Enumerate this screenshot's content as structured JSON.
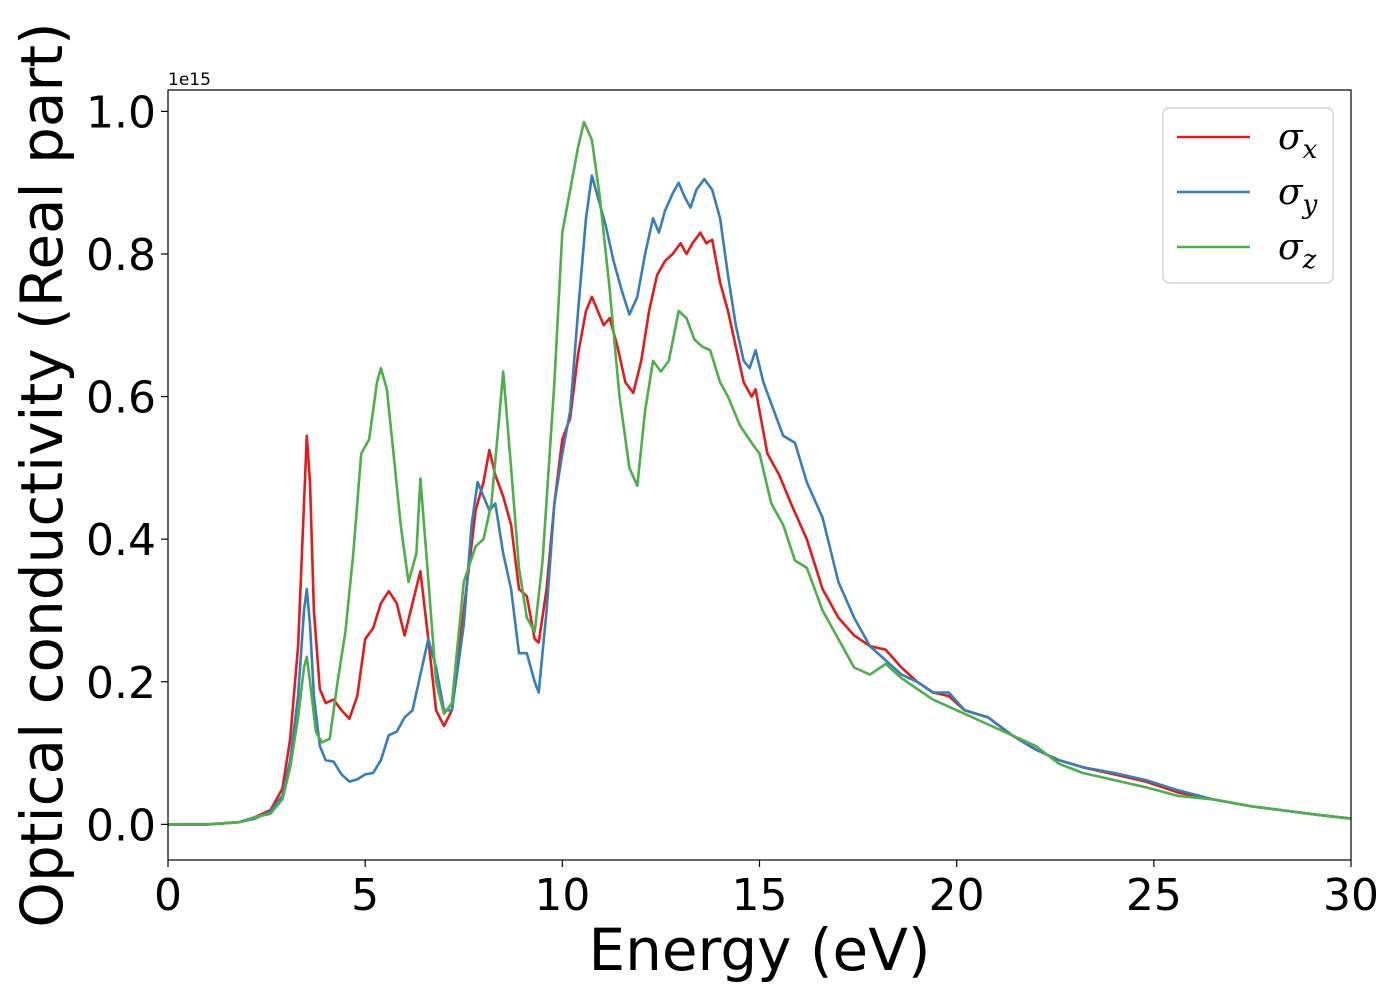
{
  "chart_data": {
    "type": "line",
    "title": "",
    "xlabel": "Energy (eV)",
    "ylabel": "Optical conductivity (Real part)",
    "y_offset_label": "1e15",
    "xlim": [
      0,
      30
    ],
    "ylim": [
      -0.05,
      1.03
    ],
    "x_ticks": [
      0,
      5,
      10,
      15,
      20,
      25,
      30
    ],
    "y_ticks": [
      0.0,
      0.2,
      0.4,
      0.6,
      0.8,
      1.0
    ],
    "x_tick_labels": [
      "0",
      "5",
      "10",
      "15",
      "20",
      "25",
      "30"
    ],
    "y_tick_labels": [
      "0.0",
      "0.2",
      "0.4",
      "0.6",
      "0.8",
      "1.0"
    ],
    "grid": false,
    "legend_position": "top-right",
    "series": [
      {
        "name": "σx",
        "legend_symbol": "σ",
        "legend_subscript": "x",
        "color": "#e41a1c",
        "points": [
          [
            0,
            0
          ],
          [
            1,
            0
          ],
          [
            1.8,
            0.003
          ],
          [
            2.2,
            0.01
          ],
          [
            2.6,
            0.02
          ],
          [
            2.9,
            0.05
          ],
          [
            3.1,
            0.12
          ],
          [
            3.3,
            0.25
          ],
          [
            3.45,
            0.45
          ],
          [
            3.52,
            0.545
          ],
          [
            3.6,
            0.48
          ],
          [
            3.7,
            0.3
          ],
          [
            3.85,
            0.19
          ],
          [
            4.0,
            0.17
          ],
          [
            4.2,
            0.175
          ],
          [
            4.4,
            0.16
          ],
          [
            4.6,
            0.148
          ],
          [
            4.8,
            0.18
          ],
          [
            5.0,
            0.26
          ],
          [
            5.2,
            0.275
          ],
          [
            5.4,
            0.31
          ],
          [
            5.6,
            0.327
          ],
          [
            5.8,
            0.31
          ],
          [
            6.0,
            0.265
          ],
          [
            6.2,
            0.31
          ],
          [
            6.4,
            0.355
          ],
          [
            6.6,
            0.26
          ],
          [
            6.8,
            0.16
          ],
          [
            7.0,
            0.138
          ],
          [
            7.2,
            0.16
          ],
          [
            7.5,
            0.3
          ],
          [
            7.8,
            0.44
          ],
          [
            8.0,
            0.48
          ],
          [
            8.15,
            0.525
          ],
          [
            8.3,
            0.49
          ],
          [
            8.5,
            0.46
          ],
          [
            8.7,
            0.42
          ],
          [
            8.9,
            0.33
          ],
          [
            9.1,
            0.32
          ],
          [
            9.3,
            0.26
          ],
          [
            9.4,
            0.255
          ],
          [
            9.6,
            0.33
          ],
          [
            9.8,
            0.45
          ],
          [
            10.0,
            0.54
          ],
          [
            10.2,
            0.57
          ],
          [
            10.4,
            0.66
          ],
          [
            10.6,
            0.72
          ],
          [
            10.75,
            0.74
          ],
          [
            10.9,
            0.72
          ],
          [
            11.05,
            0.7
          ],
          [
            11.2,
            0.71
          ],
          [
            11.4,
            0.67
          ],
          [
            11.6,
            0.62
          ],
          [
            11.8,
            0.605
          ],
          [
            12.0,
            0.65
          ],
          [
            12.2,
            0.72
          ],
          [
            12.4,
            0.77
          ],
          [
            12.6,
            0.79
          ],
          [
            12.8,
            0.8
          ],
          [
            13.0,
            0.815
          ],
          [
            13.15,
            0.8
          ],
          [
            13.3,
            0.815
          ],
          [
            13.5,
            0.83
          ],
          [
            13.65,
            0.815
          ],
          [
            13.8,
            0.82
          ],
          [
            14.0,
            0.76
          ],
          [
            14.2,
            0.72
          ],
          [
            14.4,
            0.67
          ],
          [
            14.6,
            0.62
          ],
          [
            14.8,
            0.6
          ],
          [
            14.9,
            0.61
          ],
          [
            15.0,
            0.58
          ],
          [
            15.2,
            0.52
          ],
          [
            15.5,
            0.49
          ],
          [
            15.8,
            0.45
          ],
          [
            16.2,
            0.4
          ],
          [
            16.6,
            0.33
          ],
          [
            17.0,
            0.29
          ],
          [
            17.4,
            0.265
          ],
          [
            17.8,
            0.25
          ],
          [
            18.2,
            0.245
          ],
          [
            18.6,
            0.22
          ],
          [
            19.0,
            0.2
          ],
          [
            19.4,
            0.185
          ],
          [
            19.8,
            0.18
          ],
          [
            20.2,
            0.16
          ],
          [
            20.8,
            0.15
          ],
          [
            21.4,
            0.125
          ],
          [
            22.0,
            0.105
          ],
          [
            22.6,
            0.09
          ],
          [
            23.2,
            0.08
          ],
          [
            24.0,
            0.07
          ],
          [
            24.8,
            0.06
          ],
          [
            25.6,
            0.045
          ],
          [
            26.5,
            0.035
          ],
          [
            27.5,
            0.025
          ],
          [
            28.5,
            0.018
          ],
          [
            29.2,
            0.013
          ],
          [
            30,
            0.008
          ]
        ]
      },
      {
        "name": "σy",
        "legend_symbol": "σ",
        "legend_subscript": "y",
        "color": "#377eb8",
        "points": [
          [
            0,
            0
          ],
          [
            1,
            0
          ],
          [
            1.8,
            0.003
          ],
          [
            2.2,
            0.008
          ],
          [
            2.6,
            0.018
          ],
          [
            2.9,
            0.04
          ],
          [
            3.1,
            0.09
          ],
          [
            3.3,
            0.18
          ],
          [
            3.45,
            0.3
          ],
          [
            3.52,
            0.33
          ],
          [
            3.6,
            0.28
          ],
          [
            3.7,
            0.18
          ],
          [
            3.85,
            0.11
          ],
          [
            4.0,
            0.09
          ],
          [
            4.2,
            0.088
          ],
          [
            4.4,
            0.07
          ],
          [
            4.6,
            0.06
          ],
          [
            4.8,
            0.063
          ],
          [
            5.0,
            0.07
          ],
          [
            5.2,
            0.072
          ],
          [
            5.4,
            0.09
          ],
          [
            5.6,
            0.125
          ],
          [
            5.8,
            0.13
          ],
          [
            6.0,
            0.15
          ],
          [
            6.2,
            0.16
          ],
          [
            6.4,
            0.21
          ],
          [
            6.6,
            0.26
          ],
          [
            6.8,
            0.22
          ],
          [
            7.0,
            0.16
          ],
          [
            7.2,
            0.16
          ],
          [
            7.5,
            0.28
          ],
          [
            7.7,
            0.42
          ],
          [
            7.85,
            0.48
          ],
          [
            8.0,
            0.46
          ],
          [
            8.15,
            0.44
          ],
          [
            8.3,
            0.45
          ],
          [
            8.5,
            0.38
          ],
          [
            8.7,
            0.33
          ],
          [
            8.9,
            0.24
          ],
          [
            9.1,
            0.24
          ],
          [
            9.3,
            0.2
          ],
          [
            9.4,
            0.185
          ],
          [
            9.6,
            0.3
          ],
          [
            9.8,
            0.45
          ],
          [
            10.0,
            0.52
          ],
          [
            10.2,
            0.58
          ],
          [
            10.4,
            0.72
          ],
          [
            10.6,
            0.85
          ],
          [
            10.75,
            0.91
          ],
          [
            10.9,
            0.88
          ],
          [
            11.1,
            0.84
          ],
          [
            11.3,
            0.79
          ],
          [
            11.5,
            0.75
          ],
          [
            11.7,
            0.715
          ],
          [
            11.9,
            0.74
          ],
          [
            12.1,
            0.8
          ],
          [
            12.3,
            0.85
          ],
          [
            12.45,
            0.83
          ],
          [
            12.6,
            0.86
          ],
          [
            12.8,
            0.885
          ],
          [
            12.95,
            0.9
          ],
          [
            13.1,
            0.88
          ],
          [
            13.25,
            0.865
          ],
          [
            13.4,
            0.89
          ],
          [
            13.6,
            0.905
          ],
          [
            13.8,
            0.89
          ],
          [
            14.0,
            0.85
          ],
          [
            14.2,
            0.77
          ],
          [
            14.4,
            0.7
          ],
          [
            14.6,
            0.65
          ],
          [
            14.75,
            0.64
          ],
          [
            14.9,
            0.665
          ],
          [
            15.1,
            0.62
          ],
          [
            15.3,
            0.59
          ],
          [
            15.6,
            0.545
          ],
          [
            15.9,
            0.535
          ],
          [
            16.2,
            0.48
          ],
          [
            16.6,
            0.43
          ],
          [
            17.0,
            0.34
          ],
          [
            17.4,
            0.29
          ],
          [
            17.8,
            0.25
          ],
          [
            18.2,
            0.23
          ],
          [
            18.6,
            0.21
          ],
          [
            19.0,
            0.2
          ],
          [
            19.4,
            0.185
          ],
          [
            19.8,
            0.185
          ],
          [
            20.2,
            0.16
          ],
          [
            20.8,
            0.15
          ],
          [
            21.4,
            0.125
          ],
          [
            22.0,
            0.105
          ],
          [
            22.6,
            0.09
          ],
          [
            23.2,
            0.08
          ],
          [
            24.0,
            0.072
          ],
          [
            24.8,
            0.062
          ],
          [
            25.6,
            0.048
          ],
          [
            26.5,
            0.035
          ],
          [
            27.5,
            0.025
          ],
          [
            28.5,
            0.018
          ],
          [
            29.2,
            0.013
          ],
          [
            30,
            0.008
          ]
        ]
      },
      {
        "name": "σz",
        "legend_symbol": "σ",
        "legend_subscript": "z",
        "color": "#4daf4a",
        "points": [
          [
            0,
            0
          ],
          [
            1,
            0
          ],
          [
            1.8,
            0.003
          ],
          [
            2.2,
            0.01
          ],
          [
            2.6,
            0.015
          ],
          [
            2.9,
            0.035
          ],
          [
            3.1,
            0.08
          ],
          [
            3.3,
            0.15
          ],
          [
            3.45,
            0.22
          ],
          [
            3.52,
            0.235
          ],
          [
            3.6,
            0.2
          ],
          [
            3.75,
            0.13
          ],
          [
            3.9,
            0.115
          ],
          [
            4.1,
            0.12
          ],
          [
            4.3,
            0.2
          ],
          [
            4.5,
            0.27
          ],
          [
            4.7,
            0.38
          ],
          [
            4.9,
            0.52
          ],
          [
            5.1,
            0.54
          ],
          [
            5.3,
            0.62
          ],
          [
            5.4,
            0.64
          ],
          [
            5.55,
            0.61
          ],
          [
            5.7,
            0.53
          ],
          [
            5.9,
            0.42
          ],
          [
            6.1,
            0.34
          ],
          [
            6.3,
            0.38
          ],
          [
            6.4,
            0.485
          ],
          [
            6.55,
            0.38
          ],
          [
            6.8,
            0.2
          ],
          [
            7.0,
            0.155
          ],
          [
            7.2,
            0.17
          ],
          [
            7.5,
            0.34
          ],
          [
            7.8,
            0.39
          ],
          [
            8.0,
            0.4
          ],
          [
            8.2,
            0.45
          ],
          [
            8.4,
            0.57
          ],
          [
            8.5,
            0.635
          ],
          [
            8.7,
            0.5
          ],
          [
            8.9,
            0.36
          ],
          [
            9.1,
            0.29
          ],
          [
            9.3,
            0.27
          ],
          [
            9.5,
            0.37
          ],
          [
            9.8,
            0.62
          ],
          [
            10.0,
            0.83
          ],
          [
            10.2,
            0.89
          ],
          [
            10.4,
            0.95
          ],
          [
            10.55,
            0.985
          ],
          [
            10.75,
            0.96
          ],
          [
            10.95,
            0.88
          ],
          [
            11.2,
            0.75
          ],
          [
            11.45,
            0.6
          ],
          [
            11.7,
            0.5
          ],
          [
            11.9,
            0.475
          ],
          [
            12.1,
            0.58
          ],
          [
            12.3,
            0.65
          ],
          [
            12.5,
            0.635
          ],
          [
            12.7,
            0.65
          ],
          [
            12.95,
            0.72
          ],
          [
            13.15,
            0.71
          ],
          [
            13.35,
            0.68
          ],
          [
            13.55,
            0.67
          ],
          [
            13.75,
            0.665
          ],
          [
            14.0,
            0.62
          ],
          [
            14.2,
            0.6
          ],
          [
            14.5,
            0.56
          ],
          [
            14.8,
            0.535
          ],
          [
            15.0,
            0.52
          ],
          [
            15.3,
            0.45
          ],
          [
            15.6,
            0.42
          ],
          [
            15.9,
            0.37
          ],
          [
            16.2,
            0.36
          ],
          [
            16.6,
            0.3
          ],
          [
            17.0,
            0.26
          ],
          [
            17.4,
            0.22
          ],
          [
            17.8,
            0.21
          ],
          [
            18.2,
            0.225
          ],
          [
            18.6,
            0.205
          ],
          [
            19.0,
            0.19
          ],
          [
            19.4,
            0.175
          ],
          [
            19.8,
            0.165
          ],
          [
            20.2,
            0.155
          ],
          [
            20.8,
            0.14
          ],
          [
            21.4,
            0.125
          ],
          [
            22.0,
            0.11
          ],
          [
            22.6,
            0.085
          ],
          [
            23.2,
            0.072
          ],
          [
            24.0,
            0.062
          ],
          [
            24.8,
            0.052
          ],
          [
            25.6,
            0.04
          ],
          [
            26.5,
            0.035
          ],
          [
            27.5,
            0.025
          ],
          [
            28.5,
            0.018
          ],
          [
            29.2,
            0.013
          ],
          [
            30,
            0.008
          ]
        ]
      }
    ]
  }
}
